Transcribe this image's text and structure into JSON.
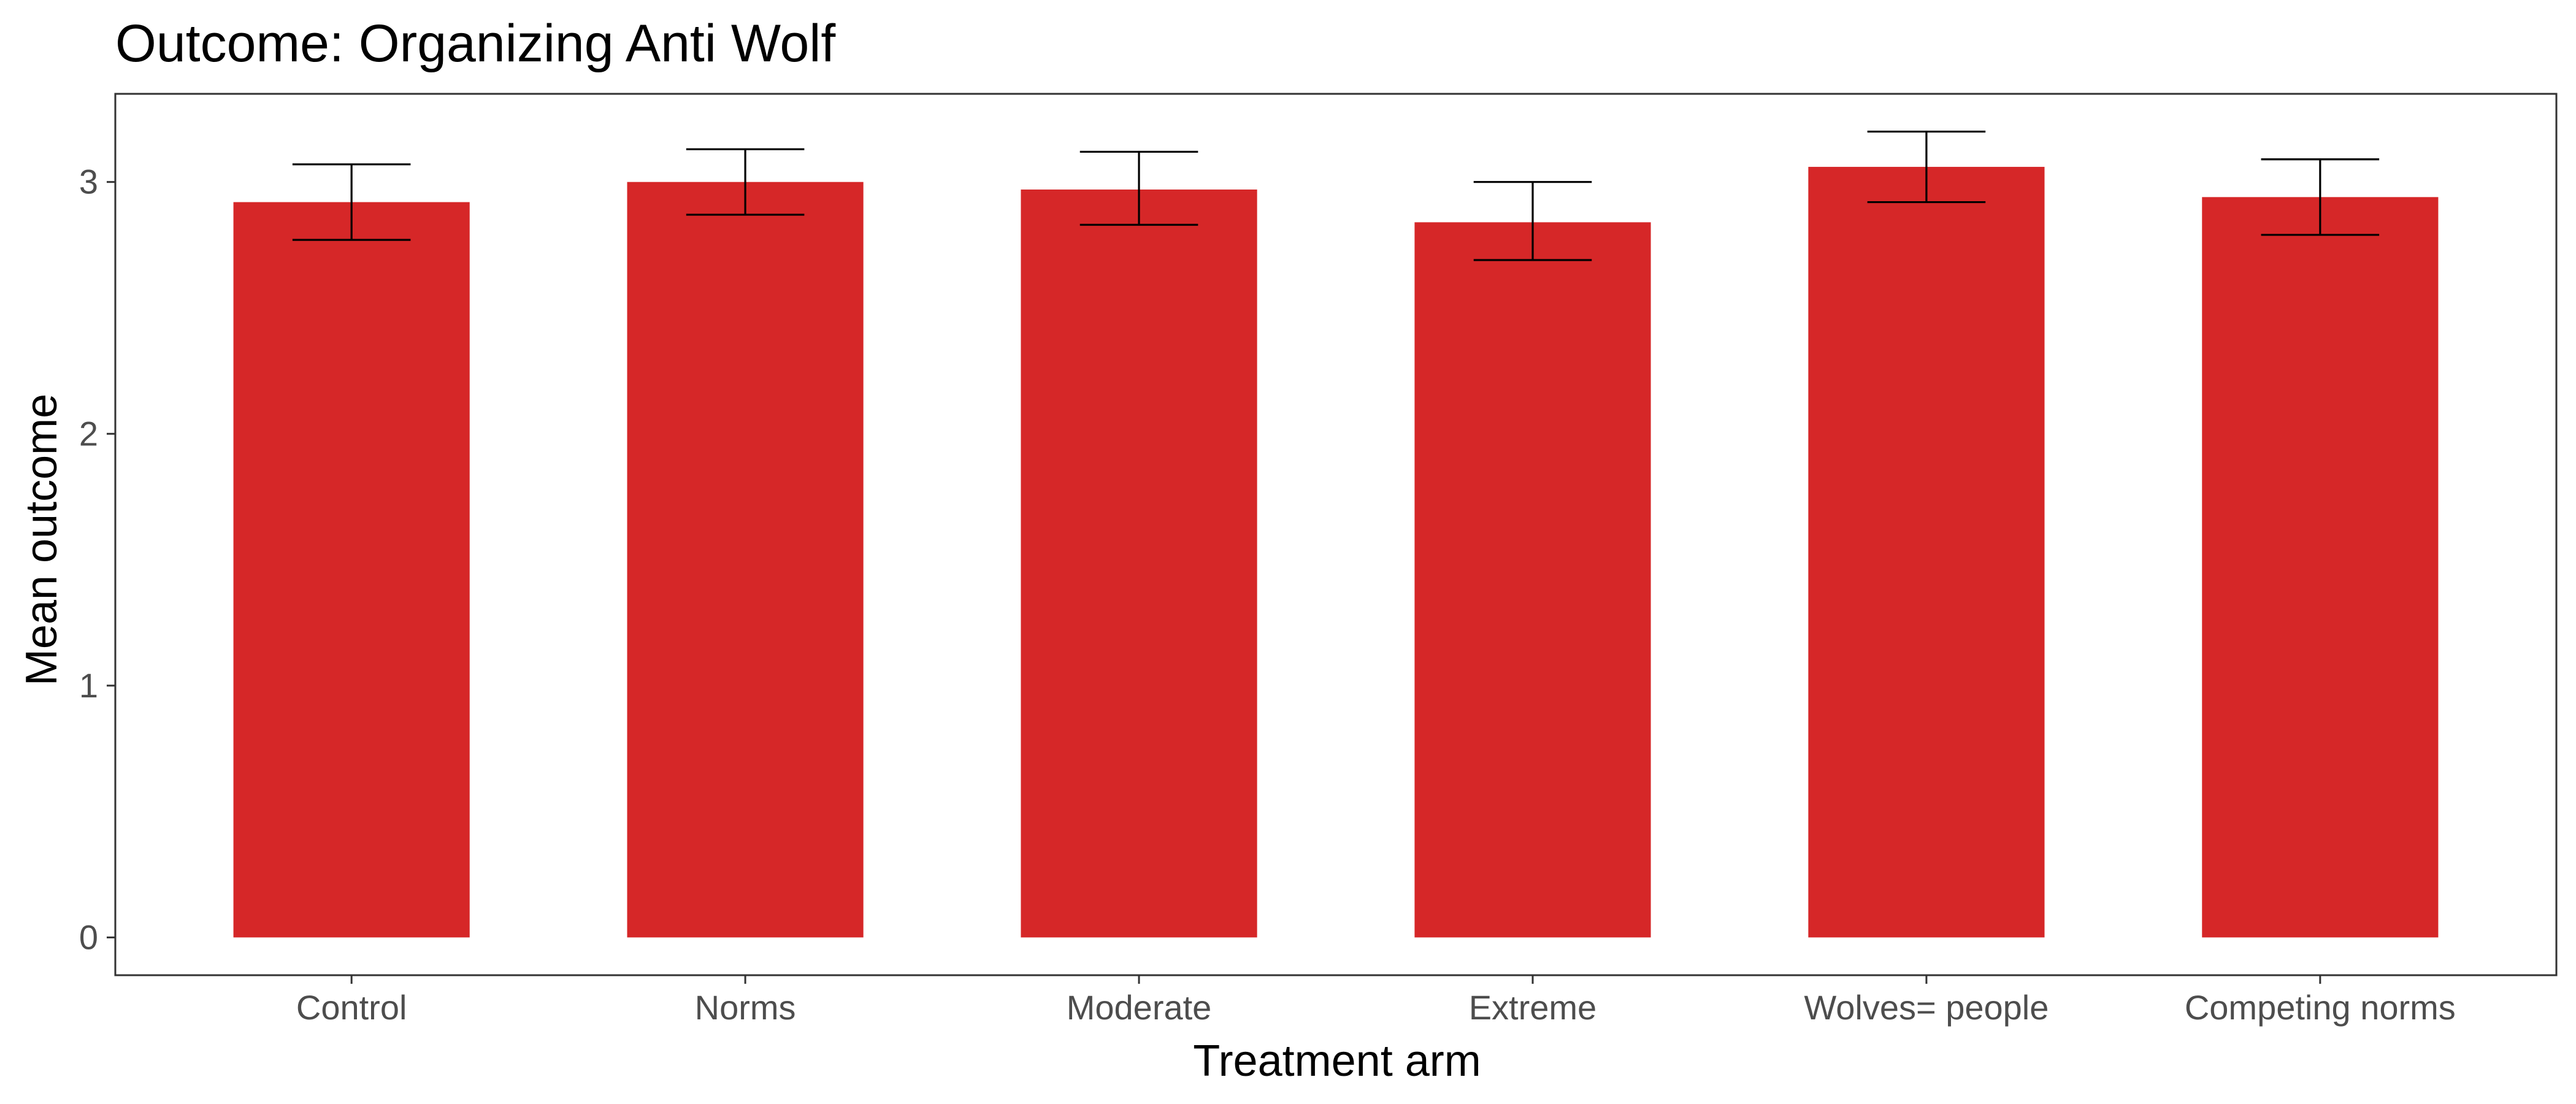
{
  "chart_data": {
    "type": "bar",
    "title": "Outcome: Organizing Anti Wolf",
    "xlabel": "Treatment arm",
    "ylabel": "Mean outcome",
    "categories": [
      "Control",
      "Norms",
      "Moderate",
      "Extreme",
      "Wolves= people",
      "Competing norms"
    ],
    "values": [
      2.92,
      3.0,
      2.97,
      2.84,
      3.06,
      2.94
    ],
    "error_low": [
      2.77,
      2.87,
      2.83,
      2.69,
      2.92,
      2.79
    ],
    "error_high": [
      3.07,
      3.13,
      3.12,
      3.0,
      3.2,
      3.09
    ],
    "ylim": [
      -0.15,
      3.35
    ],
    "yticks": [
      0,
      1,
      2,
      3
    ],
    "grid": false,
    "legend": "none",
    "bar_color": "#d62728",
    "error_bar_color": "#000000"
  }
}
